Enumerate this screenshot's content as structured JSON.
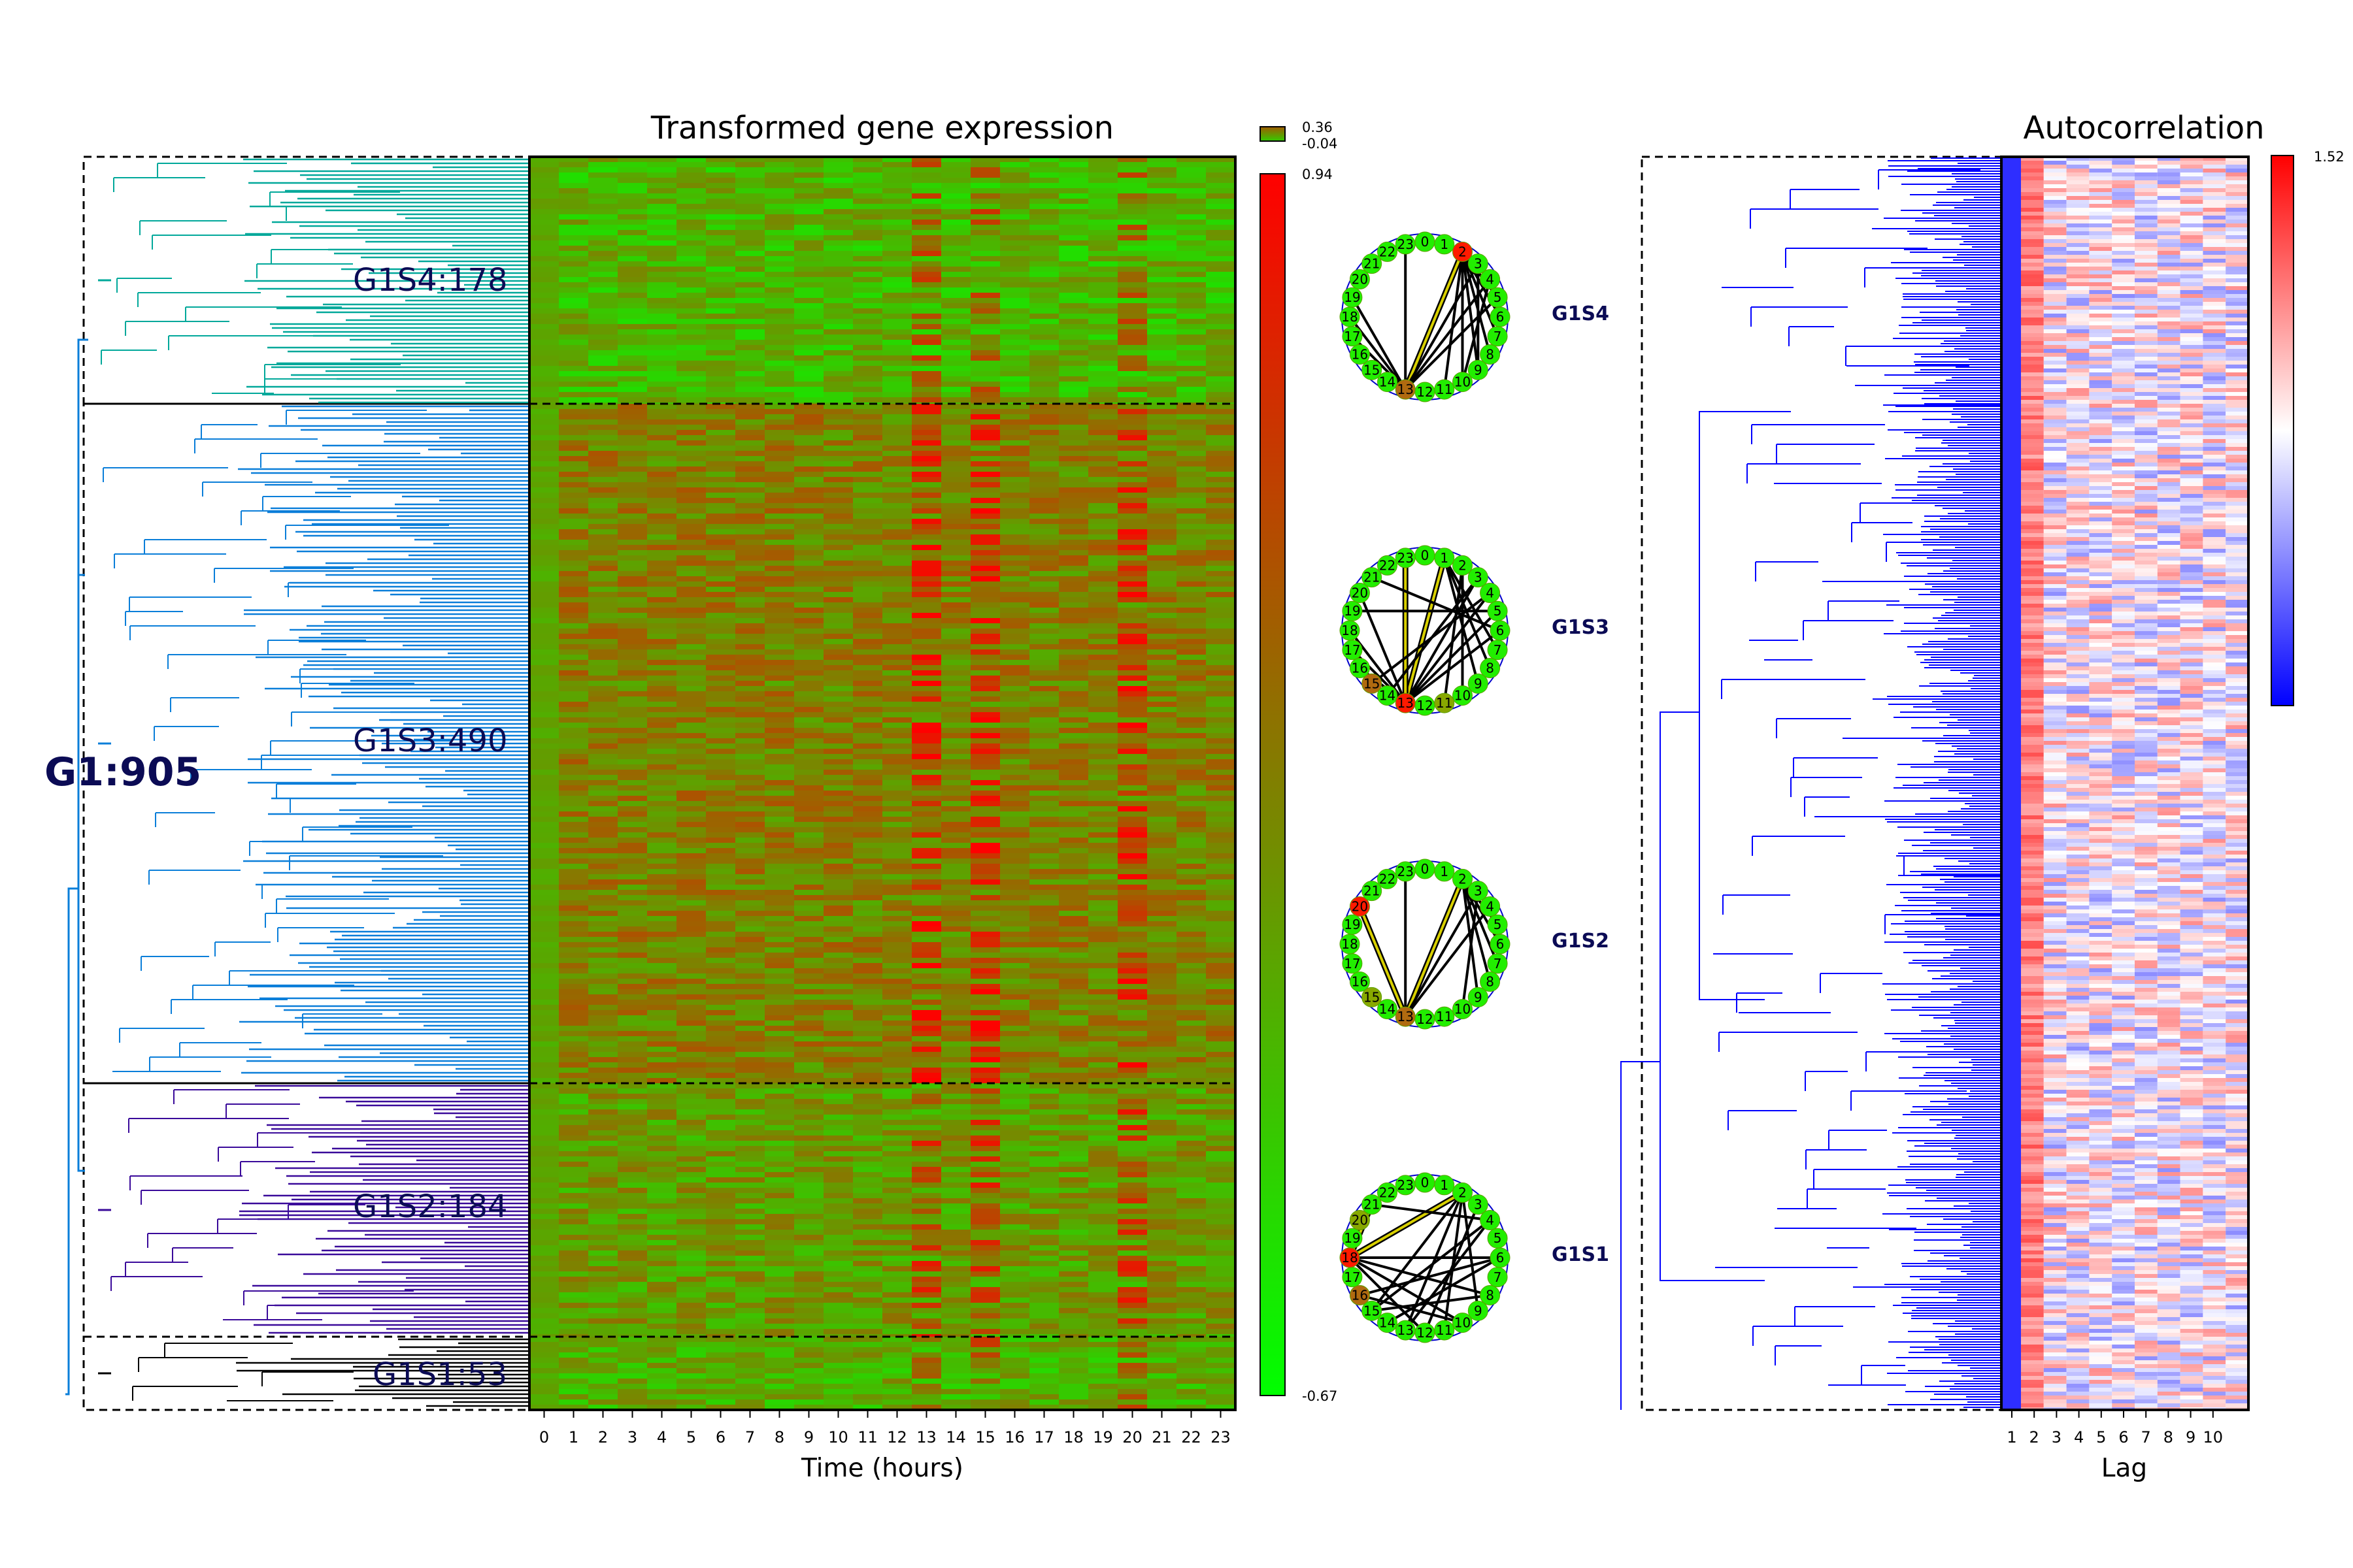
{
  "heatmap_title": "Transformed gene expression",
  "heatmap_xlabel": "Time (hours)",
  "autocorr_title": "Autocorrelation",
  "autocorr_xlabel": "Lag",
  "main_cluster_label": "G1:905",
  "cluster_labels": [
    "G1S4:178",
    "G1S3:490",
    "G1S2:184",
    "G1S1:53"
  ],
  "circle_labels": [
    "G1S4",
    "G1S3",
    "G1S2",
    "G1S1"
  ],
  "mini_colorbar": {
    "max_label": "0.36",
    "min_label": "-0.04"
  },
  "expr_colorbar": {
    "max_label": "0.94",
    "min_label": "-0.67"
  },
  "autocorr_colorbar": {
    "max_label": "1.52"
  },
  "colors": {
    "expr_low": "#00ff00",
    "expr_mid": "#808000",
    "expr_high": "#ff0000",
    "autocorr_low": "#0000ff",
    "autocorr_mid": "#ffffff",
    "autocorr_high": "#ff0000",
    "cluster_G1S4": "#00a89a",
    "cluster_G1S3": "#0a7ed9",
    "cluster_G1S2": "#3a0a9a",
    "cluster_G1S1": "#000000",
    "dendro_right": "#0000ff",
    "label_text": "#0b0b55"
  },
  "chart_data": [
    {
      "type": "heatmap",
      "title": "Transformed gene expression",
      "xlabel": "Time (hours)",
      "x_ticks": [
        "0",
        "1",
        "2",
        "3",
        "4",
        "5",
        "6",
        "7",
        "8",
        "9",
        "10",
        "11",
        "12",
        "13",
        "14",
        "15",
        "16",
        "17",
        "18",
        "19",
        "20",
        "21",
        "22",
        "23"
      ],
      "row_clusters": [
        {
          "name": "G1S4",
          "count": 178
        },
        {
          "name": "G1S3",
          "count": 490
        },
        {
          "name": "G1S2",
          "count": 184
        },
        {
          "name": "G1S1",
          "count": 53
        }
      ],
      "total_rows": 905,
      "colorbar_range": [
        -0.67,
        0.94
      ],
      "colorscale": [
        "#00ff00",
        "#808000",
        "#ff0000"
      ],
      "hot_columns_hours": [
        13,
        15,
        20
      ]
    },
    {
      "type": "heatmap",
      "title": "Autocorrelation",
      "xlabel": "Lag",
      "x_ticks": [
        "1",
        "2",
        "3",
        "4",
        "5",
        "6",
        "7",
        "8",
        "9",
        "10"
      ],
      "colorbar_max": 1.52,
      "colorscale": [
        "#0000ff",
        "#ffffff",
        "#ff0000"
      ]
    }
  ],
  "circle_graphs": [
    {
      "label": "G1S4",
      "node_labels": [
        "0",
        "1",
        "2",
        "3",
        "4",
        "5",
        "6",
        "7",
        "8",
        "9",
        "10",
        "11",
        "12",
        "13",
        "14",
        "15",
        "16",
        "17",
        "18",
        "19",
        "20",
        "21",
        "22",
        "23"
      ],
      "highlight_nodes": [
        "2",
        "13"
      ],
      "edges": [
        [
          13,
          2
        ],
        [
          13,
          23
        ],
        [
          2,
          5
        ],
        [
          2,
          6
        ],
        [
          2,
          7
        ],
        [
          2,
          8
        ],
        [
          2,
          9
        ],
        [
          2,
          10
        ],
        [
          2,
          11
        ],
        [
          13,
          3
        ],
        [
          13,
          4
        ],
        [
          13,
          5
        ],
        [
          13,
          17
        ],
        [
          13,
          18
        ],
        [
          13,
          19
        ],
        [
          3,
          9
        ],
        [
          4,
          10
        ]
      ],
      "yellow_edges": [
        [
          13,
          2
        ]
      ]
    },
    {
      "label": "G1S3",
      "node_labels": [
        "0",
        "1",
        "2",
        "3",
        "4",
        "5",
        "6",
        "7",
        "8",
        "9",
        "10",
        "11",
        "12",
        "13",
        "14",
        "15",
        "16",
        "17",
        "18",
        "19",
        "20",
        "21",
        "22",
        "23"
      ],
      "highlight_nodes": [
        "13",
        "15",
        "11"
      ],
      "edges": [
        [
          13,
          1
        ],
        [
          13,
          23
        ],
        [
          13,
          3
        ],
        [
          13,
          4
        ],
        [
          13,
          5
        ],
        [
          13,
          6
        ],
        [
          13,
          20
        ],
        [
          13,
          18
        ],
        [
          13,
          17
        ],
        [
          13,
          16
        ],
        [
          1,
          7
        ],
        [
          1,
          8
        ],
        [
          1,
          9
        ],
        [
          2,
          10
        ],
        [
          2,
          11
        ],
        [
          3,
          14
        ],
        [
          4,
          15
        ],
        [
          5,
          19
        ],
        [
          6,
          21
        ]
      ],
      "yellow_edges": [
        [
          13,
          1
        ],
        [
          13,
          23
        ]
      ]
    },
    {
      "label": "G1S2",
      "node_labels": [
        "0",
        "1",
        "2",
        "3",
        "4",
        "5",
        "6",
        "7",
        "8",
        "9",
        "10",
        "11",
        "12",
        "13",
        "14",
        "15",
        "16",
        "17",
        "18",
        "19",
        "20",
        "21",
        "22",
        "23"
      ],
      "highlight_nodes": [
        "20",
        "13",
        "15"
      ],
      "edges": [
        [
          13,
          2
        ],
        [
          20,
          13
        ],
        [
          2,
          5
        ],
        [
          2,
          6
        ],
        [
          2,
          7
        ],
        [
          2,
          8
        ],
        [
          2,
          9
        ],
        [
          3,
          10
        ],
        [
          13,
          3
        ],
        [
          13,
          4
        ],
        [
          13,
          23
        ]
      ],
      "yellow_edges": [
        [
          13,
          2
        ],
        [
          20,
          13
        ]
      ]
    },
    {
      "label": "G1S1",
      "node_labels": [
        "0",
        "1",
        "2",
        "3",
        "4",
        "5",
        "6",
        "7",
        "8",
        "9",
        "10",
        "11",
        "12",
        "13",
        "14",
        "15",
        "16",
        "17",
        "18",
        "19",
        "20",
        "21",
        "22",
        "23"
      ],
      "highlight_nodes": [
        "18",
        "16",
        "20"
      ],
      "edges": [
        [
          18,
          2
        ],
        [
          18,
          21
        ],
        [
          18,
          6
        ],
        [
          18,
          8
        ],
        [
          18,
          10
        ],
        [
          18,
          12
        ],
        [
          2,
          9
        ],
        [
          2,
          11
        ],
        [
          2,
          13
        ],
        [
          2,
          15
        ],
        [
          6,
          14
        ],
        [
          6,
          16
        ],
        [
          4,
          13
        ],
        [
          4,
          15
        ],
        [
          3,
          12
        ],
        [
          8,
          15
        ],
        [
          10,
          16
        ],
        [
          21,
          4
        ]
      ],
      "yellow_edges": [
        [
          18,
          2
        ],
        [
          18,
          21
        ]
      ]
    }
  ]
}
